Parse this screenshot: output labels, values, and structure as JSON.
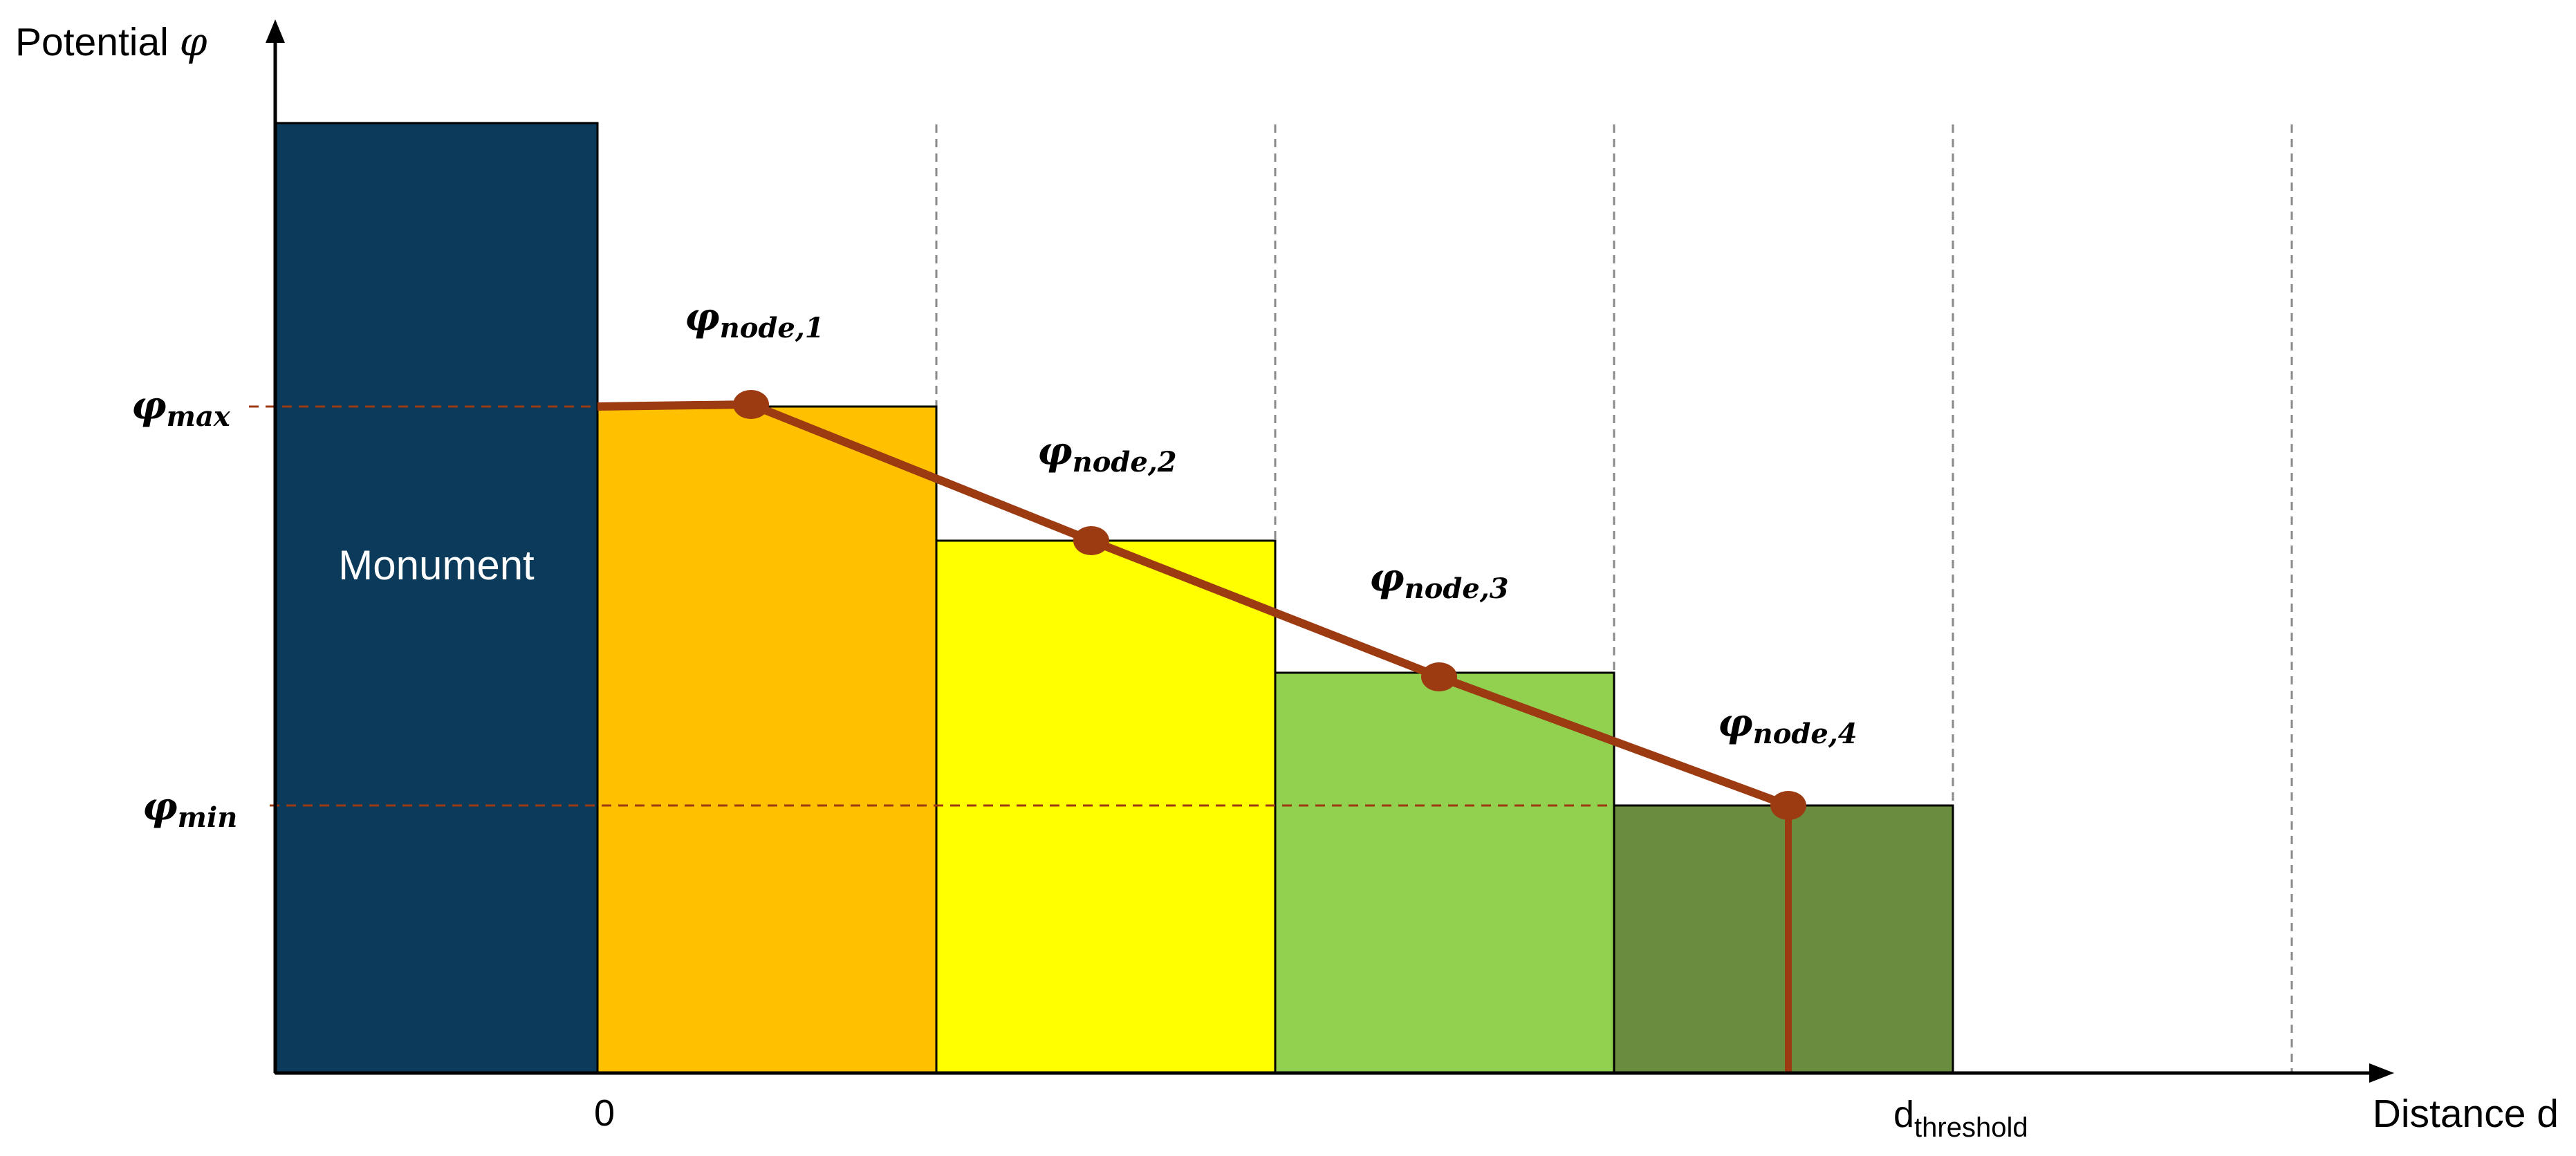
{
  "axes": {
    "y_label": "Potential ",
    "y_symbol": "φ",
    "x_label": "Distance d"
  },
  "ticks": {
    "zero": "0",
    "threshold_main": "d",
    "threshold_sub": "threshold"
  },
  "levels": {
    "max": {
      "symbol": "φ",
      "sub": "max"
    },
    "min": {
      "symbol": "φ",
      "sub": "min"
    }
  },
  "monument": {
    "label": "Monument",
    "color": "#0B3A5A"
  },
  "nodes": [
    {
      "symbol": "φ",
      "sub": "node,1"
    },
    {
      "symbol": "φ",
      "sub": "node,2"
    },
    {
      "symbol": "φ",
      "sub": "node,3"
    },
    {
      "symbol": "φ",
      "sub": "node,4"
    }
  ],
  "colors": {
    "bar_1": "#FFC000",
    "bar_2": "#FFFF00",
    "bar_3": "#92D050",
    "bar_4": "#6A8C3E",
    "potential_line": "#9C3A12",
    "grid": "#8A8A8A"
  }
}
